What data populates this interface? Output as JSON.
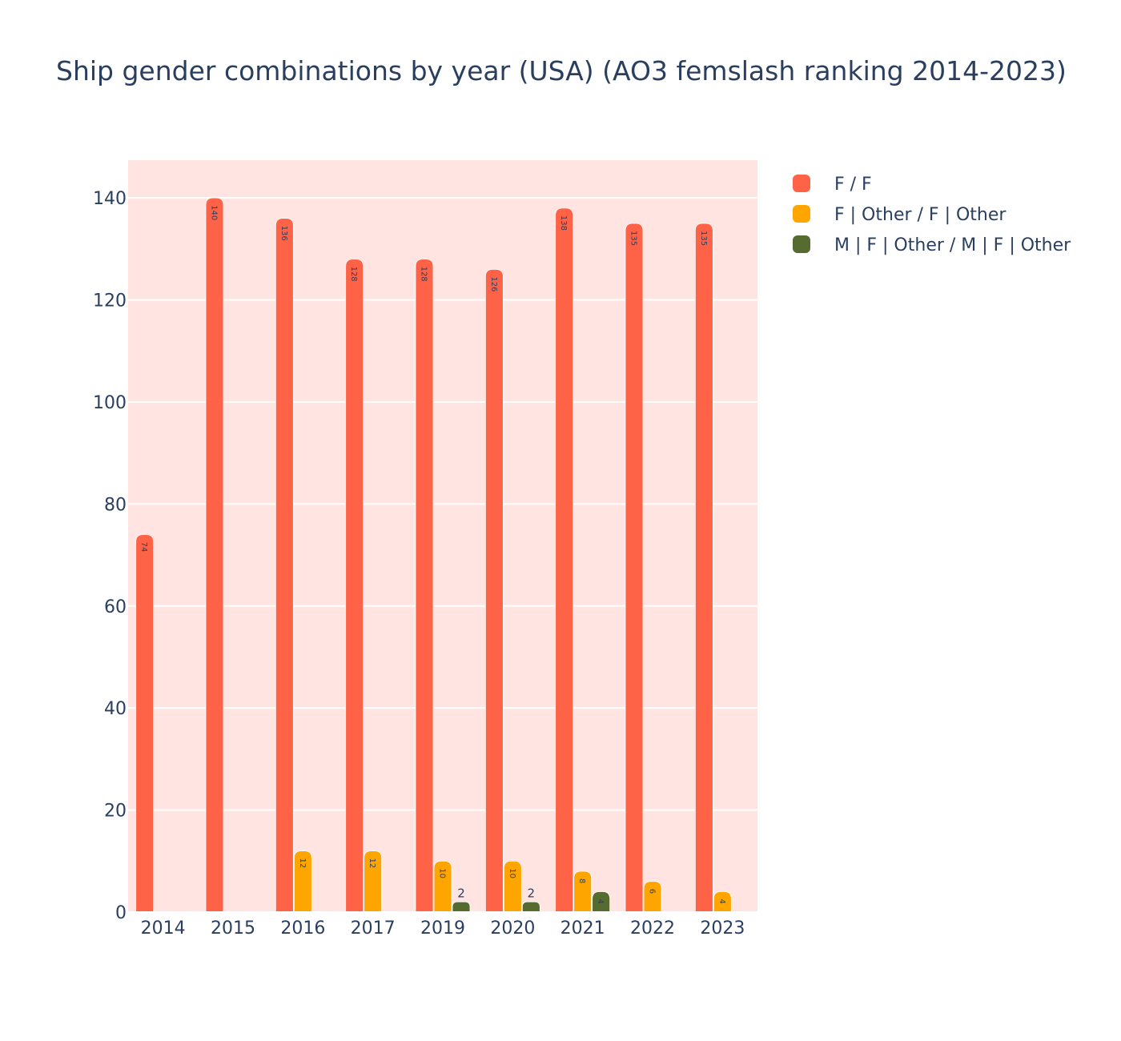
{
  "chart_data": {
    "type": "bar",
    "title": "Ship gender combinations by year (USA) (AO3 femslash ranking 2014-2023)",
    "xlabel": "",
    "ylabel": "",
    "categories": [
      "2014",
      "2015",
      "2016",
      "2017",
      "2019",
      "2020",
      "2021",
      "2022",
      "2023"
    ],
    "series": [
      {
        "name": "F / F",
        "color": "#ff6347",
        "values": [
          74,
          140,
          136,
          128,
          128,
          126,
          138,
          135,
          135
        ]
      },
      {
        "name": "F | Other / F | Other",
        "color": "#ffa500",
        "values": [
          0,
          0,
          12,
          12,
          10,
          10,
          8,
          6,
          4
        ]
      },
      {
        "name": "M | F | Other / M | F | Other",
        "color": "#556b2f",
        "values": [
          0,
          0,
          0,
          0,
          2,
          2,
          4,
          0,
          0
        ]
      }
    ],
    "ylim": [
      0,
      147.4
    ],
    "yticks": [
      0,
      20,
      40,
      60,
      80,
      100,
      120,
      140
    ],
    "plot_background": "#ffe4e1",
    "grid": true,
    "legend": "top-right outside plot"
  }
}
